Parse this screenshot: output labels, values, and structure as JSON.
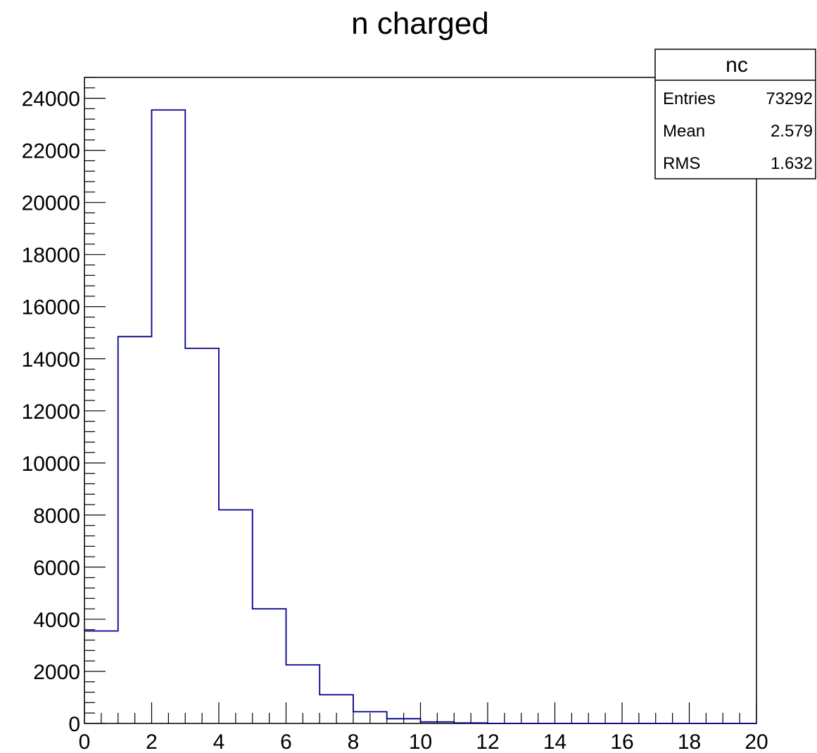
{
  "chart_data": {
    "type": "histogram",
    "title": "n charged",
    "xlabel": "",
    "ylabel": "",
    "xlim": [
      0,
      20
    ],
    "ylim": [
      0,
      24800
    ],
    "x_ticks": [
      0,
      2,
      4,
      6,
      8,
      10,
      12,
      14,
      16,
      18,
      20
    ],
    "y_ticks": [
      0,
      2000,
      4000,
      6000,
      8000,
      10000,
      12000,
      14000,
      16000,
      18000,
      20000,
      22000,
      24000
    ],
    "bin_edges": [
      0,
      1,
      2,
      3,
      4,
      5,
      6,
      7,
      8,
      9,
      10,
      11,
      12,
      13,
      14,
      15,
      16,
      17,
      18,
      19,
      20
    ],
    "values": [
      3550,
      14850,
      23550,
      14400,
      8200,
      4400,
      2250,
      1100,
      450,
      180,
      60,
      20,
      0,
      0,
      0,
      0,
      0,
      0,
      0,
      0
    ],
    "line_color": "#00008b",
    "grid": false
  },
  "stats": {
    "name": "nc",
    "rows": [
      {
        "label": "Entries",
        "value": "73292"
      },
      {
        "label": "Mean",
        "value": "2.579"
      },
      {
        "label": "RMS",
        "value": "1.632"
      }
    ]
  }
}
